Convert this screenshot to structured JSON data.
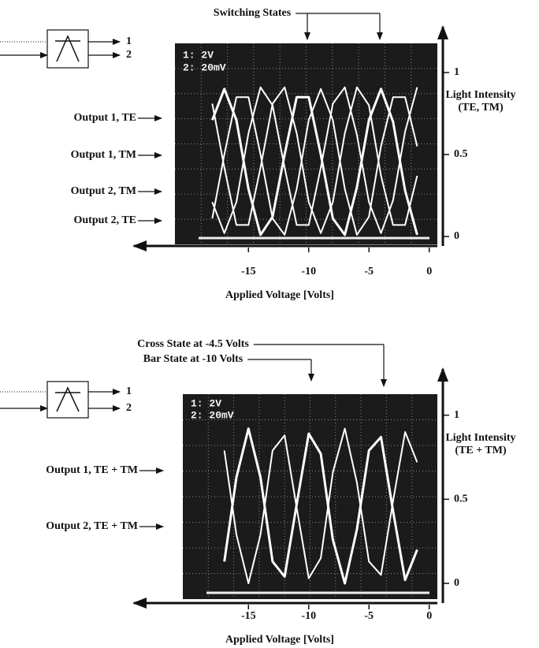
{
  "chart_data": [
    {
      "type": "line",
      "annotations": [
        "Switching States"
      ],
      "port_labels": [
        "1",
        "2"
      ],
      "scope_labels": [
        "1: 2V",
        "2: 20mV"
      ],
      "xlabel": "Applied Voltage [Volts]",
      "ylabel": "Light Intensity (TE, TM)",
      "xlim": [
        -24.5,
        1
      ],
      "xticks": [
        -15,
        -10,
        -5,
        0
      ],
      "ylim": [
        0,
        1.25
      ],
      "yticks": [
        0,
        0.5,
        1
      ],
      "grid": true,
      "x": [
        -18,
        -17,
        -16,
        -15,
        -14,
        -13,
        -12,
        -11,
        -10,
        -9,
        -8,
        -7,
        -6,
        -5,
        -4,
        -3,
        -2,
        -1
      ],
      "series": [
        {
          "name": "Output 1, TE",
          "color": "#ffffff",
          "values": [
            0.71,
            0.9,
            0.71,
            0.29,
            0.01,
            0.12,
            0.5,
            0.85,
            0.85,
            0.5,
            0.11,
            0.01,
            0.3,
            0.71,
            0.9,
            0.7,
            0.28,
            0.01
          ]
        },
        {
          "name": "Output 1, TM",
          "color": "#ffffff",
          "values": [
            0.11,
            0.5,
            0.85,
            0.85,
            0.5,
            0.11,
            0.01,
            0.29,
            0.71,
            0.9,
            0.71,
            0.29,
            0.01,
            0.12,
            0.55,
            0.85,
            0.85,
            0.55
          ]
        },
        {
          "name": "Output 2, TM",
          "color": "#ffffff",
          "values": [
            0.81,
            0.42,
            0.07,
            0.07,
            0.42,
            0.81,
            0.91,
            0.63,
            0.21,
            0.02,
            0.21,
            0.63,
            0.91,
            0.8,
            0.37,
            0.07,
            0.07,
            0.37
          ]
        },
        {
          "name": "Output 2, TE",
          "color": "#ffffff",
          "values": [
            0.21,
            0.02,
            0.21,
            0.63,
            0.91,
            0.8,
            0.42,
            0.07,
            0.07,
            0.42,
            0.81,
            0.91,
            0.62,
            0.21,
            0.02,
            0.22,
            0.64,
            0.91
          ]
        }
      ]
    },
    {
      "type": "line",
      "annotations": [
        "Cross State at -4.5 Volts",
        "Bar State at -10 Volts"
      ],
      "port_labels": [
        "1",
        "2"
      ],
      "scope_labels": [
        "1: 2V",
        "2: 20mV"
      ],
      "xlabel": "Applied Voltage [Volts]",
      "ylabel": "Light Intensity (TE + TM)",
      "xlim": [
        -24.5,
        1
      ],
      "xticks": [
        -15,
        -10,
        -5,
        0
      ],
      "ylim": [
        0,
        1.2
      ],
      "yticks": [
        0,
        0.5,
        1
      ],
      "grid": true,
      "x": [
        -17,
        -16,
        -15,
        -14,
        -13,
        -12,
        -11,
        -10,
        -9,
        -8,
        -7,
        -6,
        -5,
        -4,
        -3,
        -2,
        -1
      ],
      "series": [
        {
          "name": "Output 1, TE + TM",
          "color": "#ffffff",
          "values": [
            0.13,
            0.63,
            0.92,
            0.63,
            0.13,
            0.04,
            0.47,
            0.89,
            0.77,
            0.26,
            0.0,
            0.32,
            0.79,
            0.87,
            0.43,
            0.02,
            0.2
          ]
        },
        {
          "name": "Output 2, TE + TM",
          "color": "#ffffff",
          "values": [
            0.79,
            0.29,
            0.0,
            0.29,
            0.79,
            0.88,
            0.45,
            0.03,
            0.15,
            0.66,
            0.92,
            0.6,
            0.13,
            0.05,
            0.49,
            0.9,
            0.72
          ]
        }
      ]
    }
  ]
}
